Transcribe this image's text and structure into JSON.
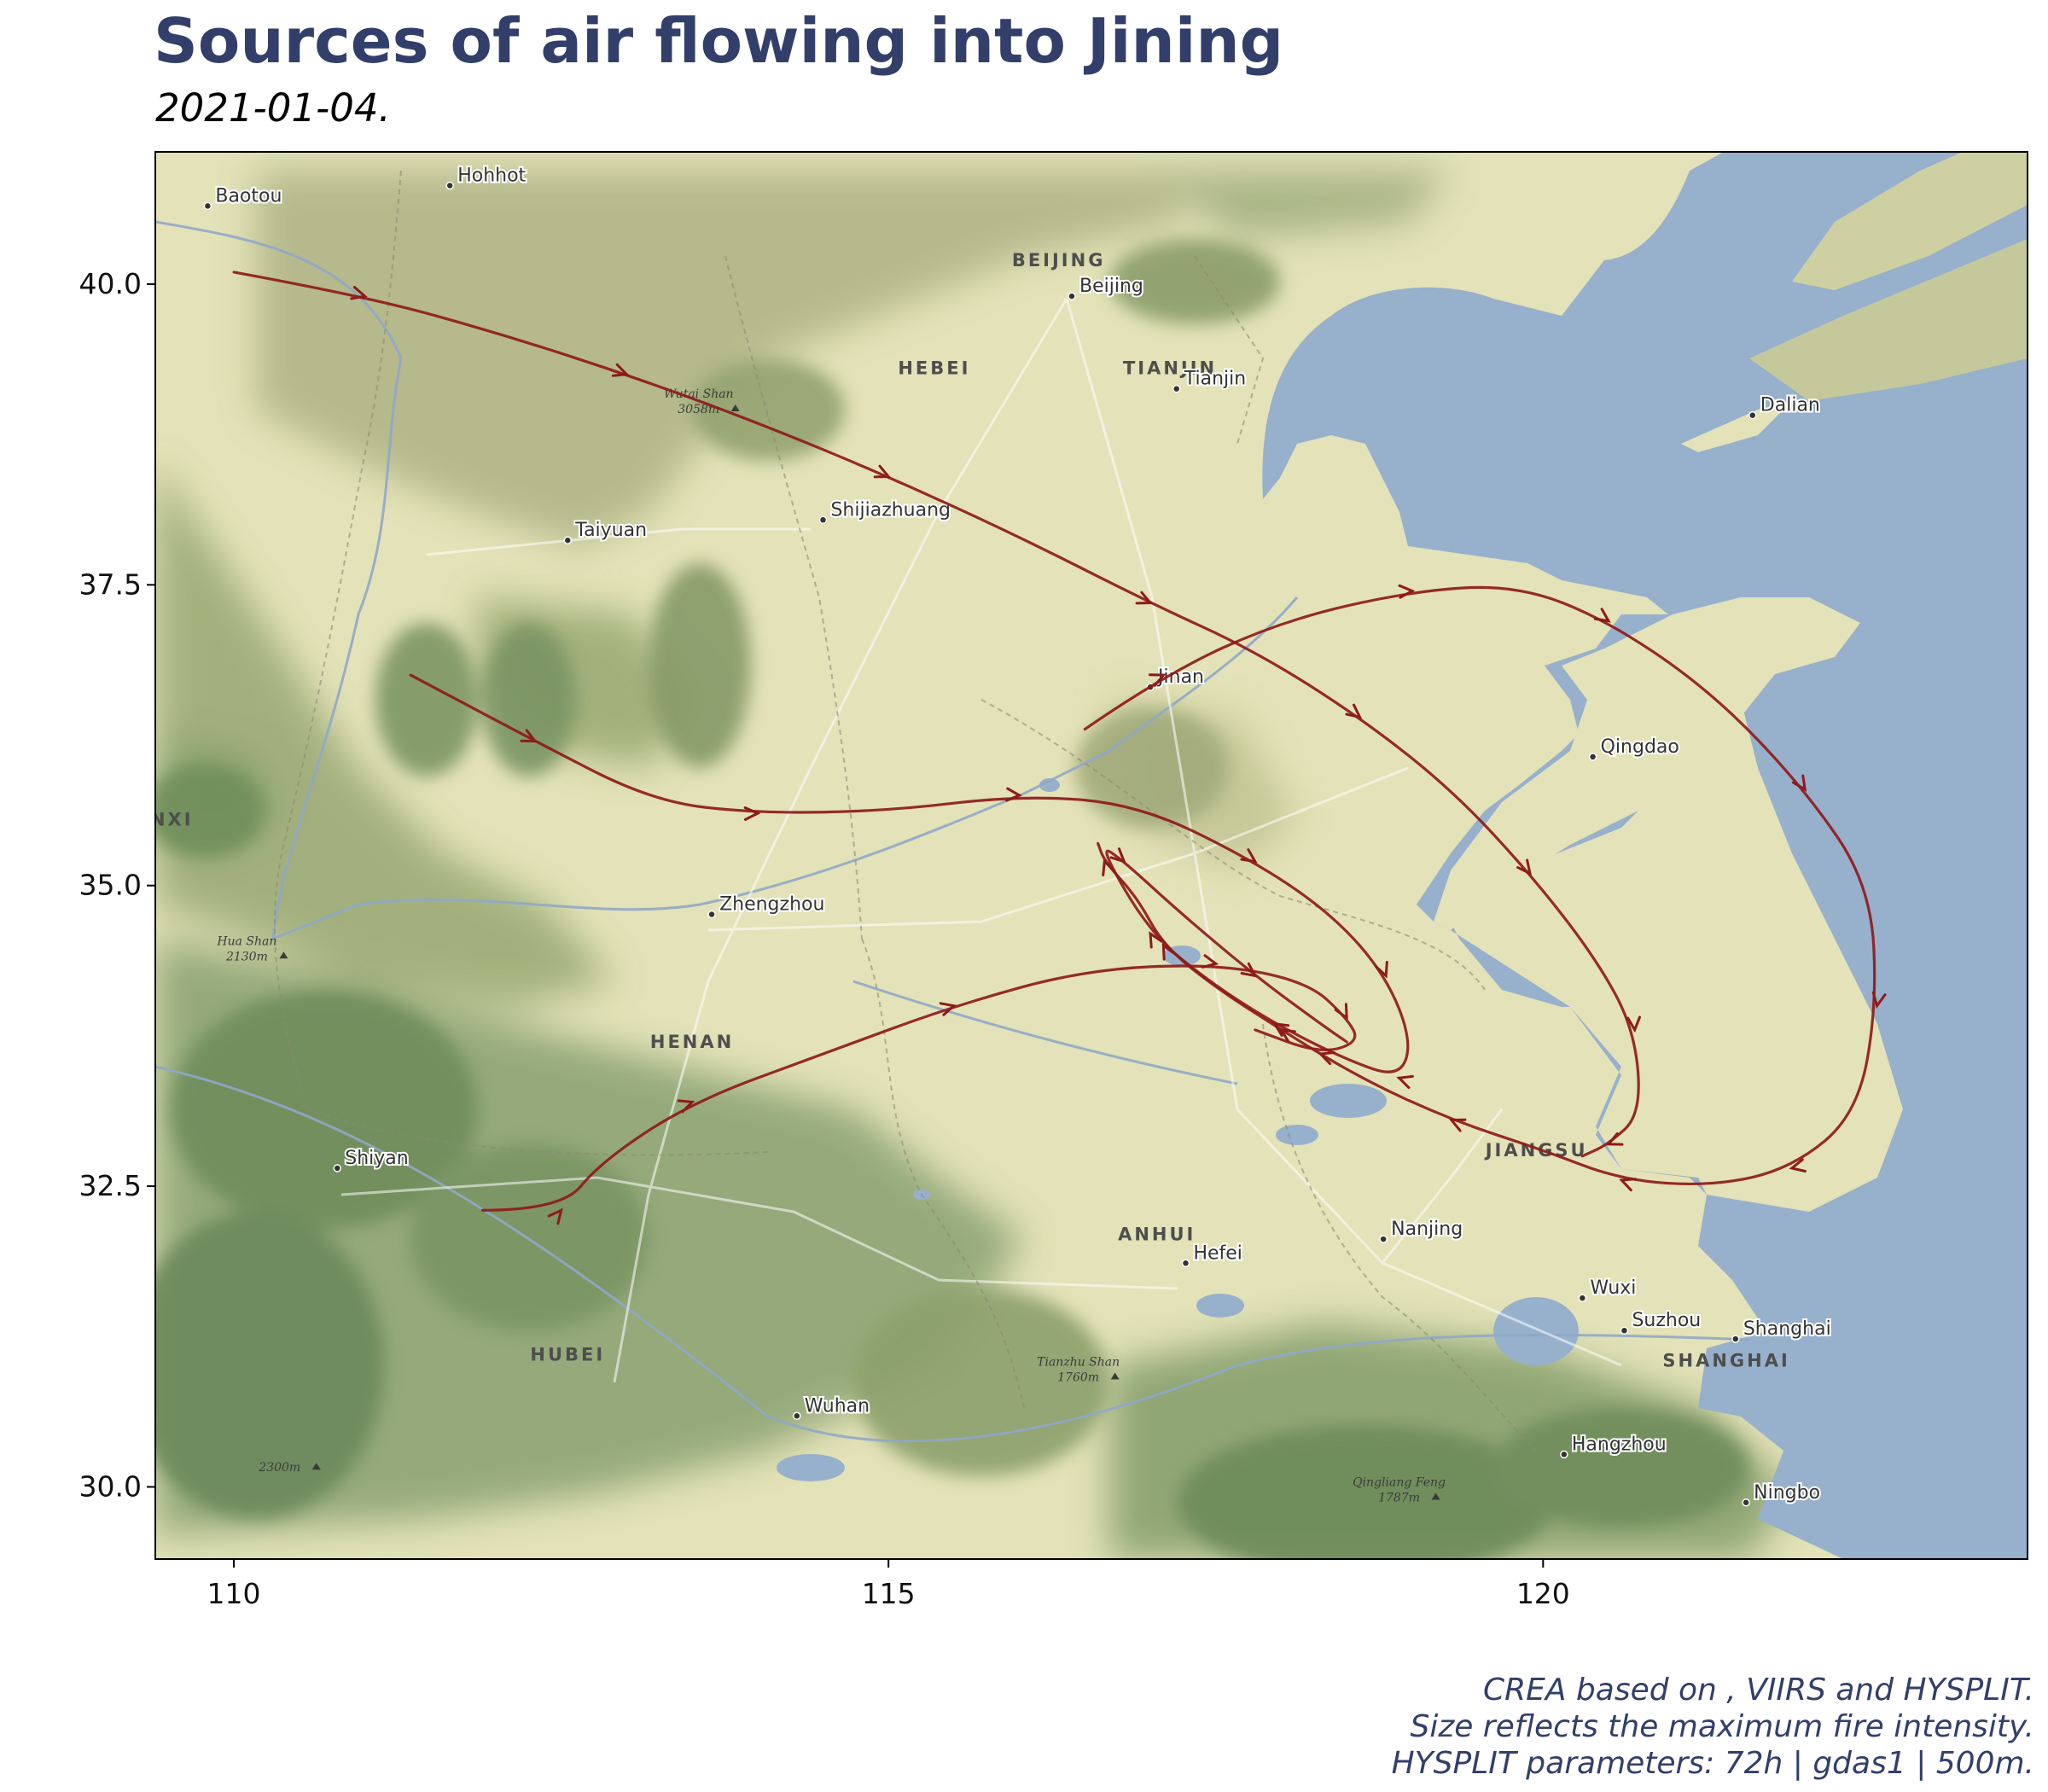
{
  "header": {
    "title": "Sources of air flowing into Jining",
    "subtitle": "2021-01-04."
  },
  "caption": {
    "line1": "CREA based on , VIIRS and HYSPLIT.",
    "line2": "Size reflects the maximum fire intensity.",
    "line3": "HYSPLIT parameters: 72h | gdas1 | 500m."
  },
  "map": {
    "lon_range": [
      109.4,
      123.7
    ],
    "lat_range": [
      29.4,
      41.1
    ],
    "x_ticks": [
      110,
      115,
      120
    ],
    "y_ticks": [
      30.0,
      32.5,
      35.0,
      37.5,
      40.0
    ],
    "x_tick_labels": [
      "110",
      "115",
      "120"
    ],
    "y_tick_labels": [
      "30.0",
      "32.5",
      "35.0",
      "37.5",
      "40.0"
    ],
    "colors": {
      "land": "#e3e2b8",
      "sea": "#97b0cc",
      "trajectory": "#8e1a1a",
      "mountain": "#6f8f5a"
    },
    "places": [
      {
        "name": "Baotou",
        "lon": 109.8,
        "lat": 40.65
      },
      {
        "name": "Hohhot",
        "lon": 111.65,
        "lat": 40.82
      },
      {
        "name": "Beijing",
        "lon": 116.4,
        "lat": 39.9
      },
      {
        "name": "Tianjin",
        "lon": 117.2,
        "lat": 39.13
      },
      {
        "name": "Dalian",
        "lon": 121.6,
        "lat": 38.91
      },
      {
        "name": "Taiyuan",
        "lon": 112.55,
        "lat": 37.87
      },
      {
        "name": "Shijiazhuang",
        "lon": 114.5,
        "lat": 38.04
      },
      {
        "name": "Jinan",
        "lon": 117.0,
        "lat": 36.65
      },
      {
        "name": "Qingdao",
        "lon": 120.38,
        "lat": 36.07
      },
      {
        "name": "Zhengzhou",
        "lon": 113.65,
        "lat": 34.76
      },
      {
        "name": "Shiyan",
        "lon": 110.79,
        "lat": 32.65
      },
      {
        "name": "Nanjing",
        "lon": 118.78,
        "lat": 32.06
      },
      {
        "name": "Hefei",
        "lon": 117.27,
        "lat": 31.86
      },
      {
        "name": "Wuxi",
        "lon": 120.3,
        "lat": 31.57
      },
      {
        "name": "Suzhou",
        "lon": 120.62,
        "lat": 31.3
      },
      {
        "name": "Shanghai",
        "lon": 121.47,
        "lat": 31.23
      },
      {
        "name": "Wuhan",
        "lon": 114.3,
        "lat": 30.59
      },
      {
        "name": "Hangzhou",
        "lon": 120.16,
        "lat": 30.27
      },
      {
        "name": "Ningbo",
        "lon": 121.55,
        "lat": 29.87
      }
    ],
    "regions": [
      {
        "name": "BEIJING",
        "lon": 116.3,
        "lat": 40.15
      },
      {
        "name": "HEBEI",
        "lon": 115.35,
        "lat": 39.25
      },
      {
        "name": "TIANJIN",
        "lon": 117.15,
        "lat": 39.25
      },
      {
        "name": "AANXI",
        "lon": 109.4,
        "lat": 35.5
      },
      {
        "name": "HENAN",
        "lon": 113.5,
        "lat": 33.65
      },
      {
        "name": "ANHUI",
        "lon": 117.05,
        "lat": 32.05
      },
      {
        "name": "JIANGSU",
        "lon": 119.95,
        "lat": 32.75
      },
      {
        "name": "HUBEI",
        "lon": 112.55,
        "lat": 31.05
      },
      {
        "name": "SHANGHAI",
        "lon": 121.4,
        "lat": 31.0
      }
    ],
    "peaks": [
      {
        "name": "Wutai Shan",
        "elev": "3058m",
        "lon": 113.55,
        "lat": 39.0
      },
      {
        "name": "Hua Shan",
        "elev": "2130m",
        "lon": 110.1,
        "lat": 34.45
      },
      {
        "name": "Tianzhu Shan",
        "elev": "1760m",
        "lon": 116.45,
        "lat": 30.95
      },
      {
        "name": "",
        "elev": "2300m",
        "lon": 110.35,
        "lat": 30.2
      },
      {
        "name": "Qingliang Feng",
        "elev": "1787m",
        "lon": 118.9,
        "lat": 29.95
      }
    ]
  },
  "chart_data": {
    "type": "line",
    "title": "Sources of air flowing into Jining",
    "subtitle": "2021-01-04.",
    "xlabel": "",
    "ylabel": "",
    "xlim": [
      109.4,
      123.7
    ],
    "ylim": [
      29.4,
      41.1
    ],
    "series": [
      {
        "values_lonlat": [
          [
            110.0,
            40.1
          ],
          [
            111.0,
            39.9
          ],
          [
            112.0,
            39.6
          ],
          [
            113.0,
            39.25
          ],
          [
            114.0,
            38.85
          ],
          [
            115.0,
            38.4
          ],
          [
            116.0,
            37.9
          ],
          [
            117.0,
            37.35
          ],
          [
            117.8,
            36.95
          ],
          [
            118.6,
            36.4
          ],
          [
            119.3,
            35.8
          ],
          [
            119.9,
            35.1
          ],
          [
            120.4,
            34.4
          ],
          [
            120.7,
            33.8
          ],
          [
            120.75,
            33.1
          ],
          [
            120.5,
            32.85
          ],
          [
            120.3,
            32.75
          ]
        ]
      },
      {
        "values_lonlat": [
          [
            111.35,
            36.75
          ],
          [
            112.3,
            36.2
          ],
          [
            113.2,
            35.7
          ],
          [
            114.0,
            35.6
          ],
          [
            115.0,
            35.62
          ],
          [
            116.0,
            35.75
          ],
          [
            116.9,
            35.68
          ],
          [
            117.8,
            35.2
          ],
          [
            118.4,
            34.75
          ],
          [
            118.8,
            34.25
          ],
          [
            119.0,
            33.7
          ],
          [
            118.9,
            33.4
          ],
          [
            118.5,
            33.55
          ],
          [
            117.95,
            33.85
          ],
          [
            117.45,
            34.2
          ],
          [
            117.0,
            34.6
          ],
          [
            116.6,
            35.35
          ],
          [
            116.8,
            35.2
          ],
          [
            117.2,
            34.8
          ],
          [
            117.8,
            34.25
          ],
          [
            118.3,
            33.85
          ],
          [
            118.5,
            33.7
          ]
        ]
      },
      {
        "values_lonlat": [
          [
            116.5,
            36.3
          ],
          [
            117.1,
            36.75
          ],
          [
            118.0,
            37.2
          ],
          [
            119.0,
            37.45
          ],
          [
            119.8,
            37.5
          ],
          [
            120.5,
            37.2
          ],
          [
            121.3,
            36.6
          ],
          [
            122.0,
            35.8
          ],
          [
            122.5,
            35.0
          ],
          [
            122.55,
            34.0
          ],
          [
            122.4,
            33.1
          ],
          [
            121.9,
            32.65
          ],
          [
            121.3,
            32.5
          ],
          [
            120.6,
            32.55
          ],
          [
            120.0,
            32.8
          ],
          [
            119.3,
            33.05
          ],
          [
            118.6,
            33.4
          ],
          [
            118.0,
            33.8
          ],
          [
            117.5,
            34.15
          ],
          [
            117.1,
            34.5
          ],
          [
            116.9,
            34.9
          ],
          [
            116.65,
            35.2
          ],
          [
            116.6,
            35.35
          ]
        ]
      },
      {
        "values_lonlat": [
          [
            111.9,
            32.3
          ],
          [
            112.5,
            32.3
          ],
          [
            112.8,
            32.7
          ],
          [
            113.5,
            33.2
          ],
          [
            114.5,
            33.6
          ],
          [
            115.5,
            34.0
          ],
          [
            116.5,
            34.3
          ],
          [
            117.5,
            34.35
          ],
          [
            118.2,
            34.2
          ],
          [
            118.5,
            33.9
          ],
          [
            118.6,
            33.7
          ],
          [
            118.3,
            33.6
          ],
          [
            117.8,
            33.8
          ]
        ]
      }
    ]
  }
}
